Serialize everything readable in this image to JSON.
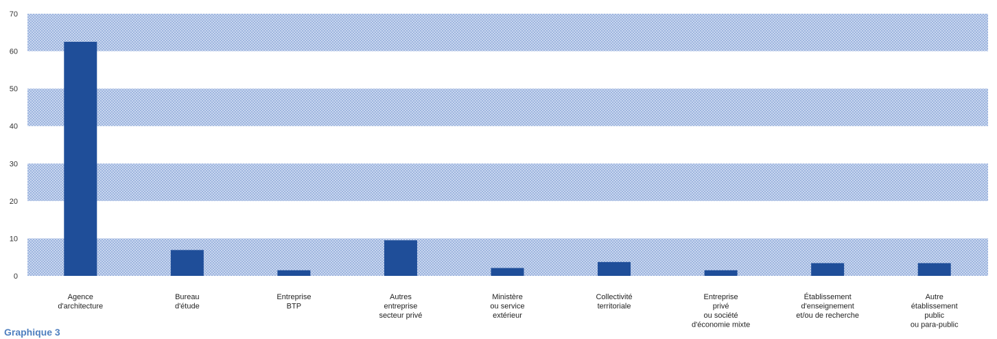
{
  "caption": "Graphique 3",
  "colors": {
    "bar": "#1f4e99",
    "band": "#c9d7ef",
    "band_dot": "#9db4de",
    "tick_text": "#333333"
  },
  "chart_data": {
    "type": "bar",
    "title": "",
    "xlabel": "",
    "ylabel": "",
    "ylim": [
      0,
      70
    ],
    "yticks": [
      0,
      10,
      20,
      30,
      40,
      50,
      60,
      70
    ],
    "grid": "alternating shaded horizontal bands",
    "categories": [
      [
        "Agence",
        "d'architecture"
      ],
      [
        "Bureau",
        "d'étude"
      ],
      [
        "Entreprise",
        "BTP"
      ],
      [
        "Autres",
        "entreprise",
        "secteur privé"
      ],
      [
        "Ministère",
        "ou service",
        "extérieur"
      ],
      [
        "Collectivité",
        "territoriale"
      ],
      [
        "Entreprise",
        "privé",
        "ou société",
        "d'économie mixte"
      ],
      [
        "Établissement",
        "d'enseignement",
        "et/ou de recherche"
      ],
      [
        "Autre",
        "établissement",
        "public",
        "ou para-public"
      ]
    ],
    "values": [
      62.5,
      6.9,
      1.5,
      9.5,
      2.1,
      3.7,
      1.5,
      3.4,
      3.4
    ]
  }
}
